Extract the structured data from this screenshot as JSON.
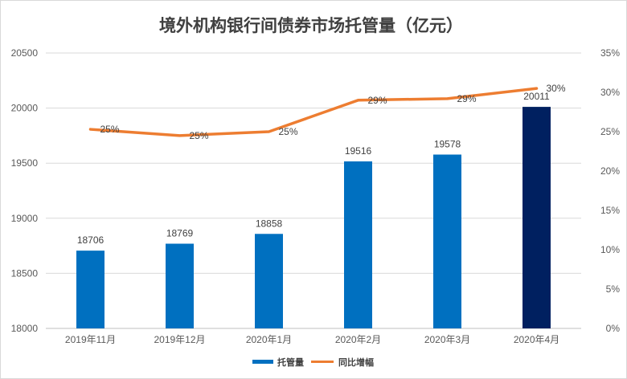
{
  "chart_data": {
    "type": "bar+line",
    "title": "境外机构银行间债券市场托管量（亿元）",
    "categories": [
      "2019年11月",
      "2019年12月",
      "2020年1月",
      "2020年2月",
      "2020年3月",
      "2020年4月"
    ],
    "series": [
      {
        "name": "托管量",
        "type": "bar",
        "axis": "left",
        "values": [
          18706,
          18769,
          18858,
          19516,
          19578,
          20011
        ],
        "labels": [
          "18706",
          "18769",
          "18858",
          "19516",
          "19578",
          "20011"
        ],
        "color": "#0070c0",
        "highlight_color": "#002060",
        "highlight_index": 5
      },
      {
        "name": "同比增幅",
        "type": "line",
        "axis": "right",
        "values": [
          25.3,
          24.5,
          25.0,
          29.0,
          29.2,
          30.5
        ],
        "labels": [
          "25%",
          "25%",
          "25%",
          "29%",
          "29%",
          "30%"
        ],
        "color": "#ed7d31"
      }
    ],
    "y_left": {
      "range": [
        18000,
        20500
      ],
      "ticks": [
        "20500",
        "20000",
        "19500",
        "19000",
        "18500",
        "18000"
      ]
    },
    "y_right": {
      "range": [
        0,
        35
      ],
      "ticks": [
        "35%",
        "30%",
        "25%",
        "20%",
        "15%",
        "10%",
        "5%",
        "0%"
      ]
    },
    "legend_position": "bottom",
    "grid": true
  }
}
